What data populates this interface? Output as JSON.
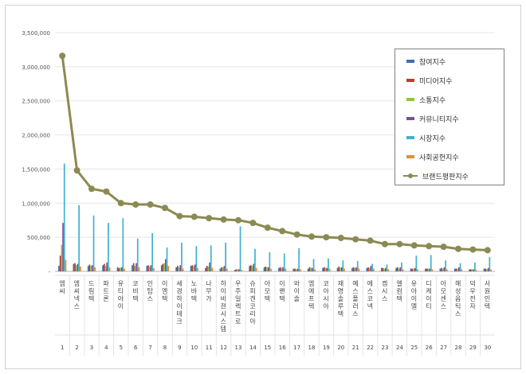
{
  "chart_data": {
    "type": "bar",
    "title": "",
    "xlabel": "",
    "ylabel": "",
    "ylim": [
      0,
      3500000
    ],
    "yticks": [
      0,
      500000,
      1000000,
      1500000,
      2000000,
      2500000,
      3000000,
      3500000
    ],
    "ytick_labels": [
      "-",
      "500,000",
      "1,000,000",
      "1,500,000",
      "2,000,000",
      "2,500,000",
      "3,000,000",
      "3,500,000"
    ],
    "categories": [
      "엠씨",
      "엠씨넥스",
      "드림텍",
      "파트론",
      "유티아이",
      "코비텍",
      "인탑스",
      "이엠텍",
      "세경하이테크",
      "노바텍",
      "나무가",
      "하이비젼시스템",
      "우주일렉트로",
      "슈피겐코리아",
      "아모텍",
      "이랜텍",
      "와이솔",
      "엠에프텍",
      "코아시아",
      "재영솔루텍",
      "예스폴러스",
      "에스코넥",
      "켐시스",
      "엘컴텍",
      "유아이엘",
      "디케이티",
      "아모센스",
      "해성옵틱스",
      "덕우전자",
      "서원인텍"
    ],
    "ranks": [
      "1",
      "2",
      "3",
      "4",
      "5",
      "6",
      "7",
      "8",
      "9",
      "10",
      "11",
      "12",
      "13",
      "14",
      "15",
      "16",
      "17",
      "18",
      "19",
      "20",
      "21",
      "22",
      "23",
      "24",
      "25",
      "26",
      "27",
      "28",
      "29",
      "30"
    ],
    "series": [
      {
        "name": "참여지수",
        "color": "#3a6fb5",
        "values": [
          80000,
          110000,
          80000,
          90000,
          60000,
          90000,
          80000,
          90000,
          60000,
          80000,
          50000,
          40000,
          20000,
          80000,
          60000,
          50000,
          40000,
          40000,
          50000,
          50000,
          50000,
          50000,
          50000,
          50000,
          40000,
          40000,
          40000,
          40000,
          30000,
          40000
        ]
      },
      {
        "name": "미디어지수",
        "color": "#c0392b",
        "values": [
          230000,
          120000,
          100000,
          110000,
          50000,
          120000,
          90000,
          110000,
          80000,
          90000,
          80000,
          60000,
          30000,
          90000,
          70000,
          60000,
          40000,
          60000,
          60000,
          70000,
          60000,
          60000,
          50000,
          60000,
          40000,
          40000,
          50000,
          40000,
          30000,
          40000
        ]
      },
      {
        "name": "소통지수",
        "color": "#8dc63f",
        "values": [
          390000,
          90000,
          80000,
          80000,
          50000,
          80000,
          70000,
          120000,
          60000,
          80000,
          70000,
          60000,
          30000,
          80000,
          60000,
          50000,
          30000,
          50000,
          50000,
          50000,
          50000,
          50000,
          40000,
          40000,
          40000,
          40000,
          40000,
          40000,
          30000,
          30000
        ]
      },
      {
        "name": "커뮤니티지수",
        "color": "#7a4ea3",
        "values": [
          710000,
          110000,
          90000,
          130000,
          60000,
          120000,
          90000,
          180000,
          90000,
          100000,
          130000,
          80000,
          30000,
          110000,
          60000,
          60000,
          40000,
          50000,
          50000,
          60000,
          60000,
          80000,
          50000,
          60000,
          50000,
          40000,
          60000,
          60000,
          30000,
          50000
        ]
      },
      {
        "name": "시장지수",
        "color": "#3fb1cf",
        "values": [
          1580000,
          970000,
          820000,
          710000,
          780000,
          480000,
          560000,
          350000,
          420000,
          370000,
          380000,
          420000,
          660000,
          330000,
          280000,
          260000,
          340000,
          180000,
          190000,
          160000,
          150000,
          110000,
          100000,
          130000,
          230000,
          240000,
          160000,
          120000,
          130000,
          210000
        ]
      },
      {
        "name": "사회공헌지수",
        "color": "#f08a24",
        "values": [
          170000,
          70000,
          60000,
          60000,
          40000,
          60000,
          50000,
          80000,
          40000,
          50000,
          50000,
          40000,
          20000,
          50000,
          40000,
          40000,
          30000,
          30000,
          40000,
          40000,
          40000,
          40000,
          30000,
          30000,
          30000,
          30000,
          30000,
          30000,
          20000,
          30000
        ]
      }
    ],
    "line_series": {
      "name": "브랜드평판지수",
      "color": "#8b8a52",
      "values": [
        3160000,
        1480000,
        1210000,
        1170000,
        1000000,
        980000,
        980000,
        930000,
        810000,
        800000,
        780000,
        760000,
        750000,
        710000,
        640000,
        590000,
        540000,
        510000,
        500000,
        490000,
        470000,
        450000,
        400000,
        400000,
        380000,
        370000,
        360000,
        330000,
        320000,
        310000
      ]
    },
    "legend_position": "top-right"
  }
}
